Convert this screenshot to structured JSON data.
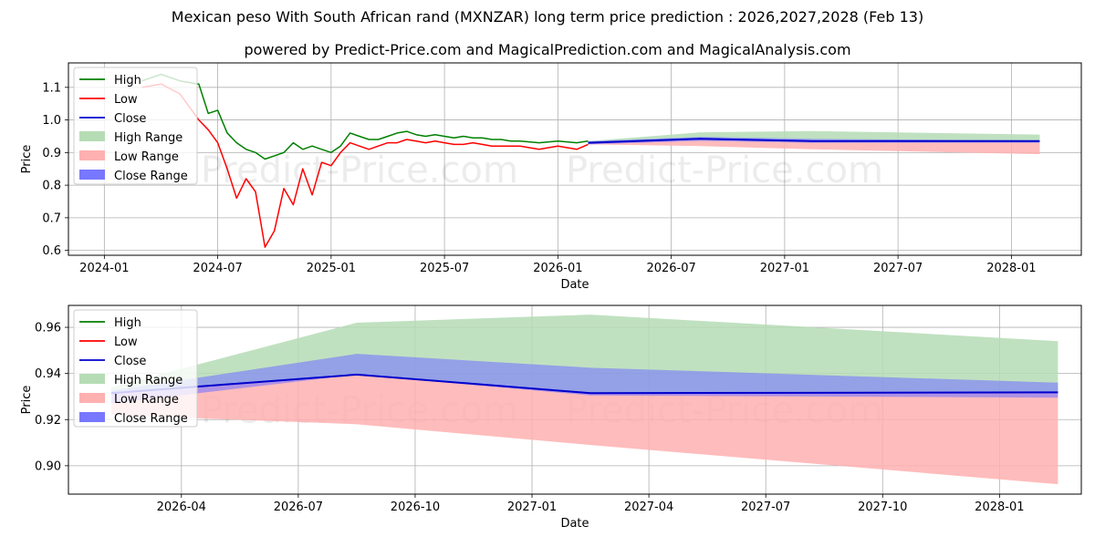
{
  "title": "Mexican peso With South African rand (MXNZAR) long term price prediction : 2026,2027,2028 (Feb 13)",
  "subtitle": "powered by Predict-Price.com and MagicalPrediction.com and MagicalAnalysis.com",
  "watermark": "Predict-Price.com",
  "colors": {
    "high": "#008000",
    "low": "#ff0000",
    "close": "#0000cc",
    "high_range": "#b5dcb5",
    "low_range": "#ffb0b0",
    "close_range": "#7777ff"
  },
  "legend": [
    "High",
    "Low",
    "Close",
    "High Range",
    "Low Range",
    "Close Range"
  ],
  "chart_data": [
    {
      "type": "line",
      "name": "long-term",
      "xlabel": "Date",
      "ylabel": "Price",
      "x_ticks": [
        "2024-01",
        "2024-07",
        "2025-01",
        "2025-07",
        "2026-01",
        "2026-07",
        "2027-01",
        "2027-07",
        "2028-01"
      ],
      "y_ticks": [
        "0.6",
        "0.7",
        "0.8",
        "0.9",
        "1.0",
        "1.1"
      ],
      "ylim": [
        0.585,
        1.175
      ],
      "xlim_months": [
        -1.9,
        51.7
      ],
      "grid": true,
      "legend_position": "top-left",
      "history_months": [
        2.0,
        3.0,
        4.0,
        5.0,
        5.5,
        6.0,
        6.5,
        7.0,
        7.5,
        8.0,
        8.5,
        9.0,
        9.5,
        10.0,
        10.5,
        11.0,
        11.5,
        12.0,
        12.5,
        13.0,
        13.5,
        14.0,
        14.5,
        15.0,
        15.5,
        16.0,
        16.5,
        17.0,
        17.5,
        18.0,
        18.5,
        19.0,
        19.5,
        20.0,
        20.5,
        21.0,
        21.5,
        22.0,
        23.0,
        24.0,
        25.0,
        25.6
      ],
      "history_high": [
        1.12,
        1.14,
        1.12,
        1.11,
        1.02,
        1.03,
        0.96,
        0.93,
        0.91,
        0.9,
        0.88,
        0.89,
        0.9,
        0.93,
        0.91,
        0.92,
        0.91,
        0.9,
        0.92,
        0.96,
        0.95,
        0.94,
        0.94,
        0.95,
        0.96,
        0.965,
        0.955,
        0.95,
        0.955,
        0.95,
        0.945,
        0.95,
        0.945,
        0.945,
        0.94,
        0.94,
        0.935,
        0.935,
        0.93,
        0.935,
        0.93,
        0.935
      ],
      "history_low": [
        1.1,
        1.11,
        1.08,
        1.0,
        0.97,
        0.93,
        0.85,
        0.76,
        0.82,
        0.78,
        0.61,
        0.66,
        0.79,
        0.74,
        0.85,
        0.77,
        0.87,
        0.86,
        0.9,
        0.93,
        0.92,
        0.91,
        0.92,
        0.93,
        0.93,
        0.94,
        0.935,
        0.93,
        0.935,
        0.93,
        0.925,
        0.925,
        0.93,
        0.925,
        0.92,
        0.92,
        0.92,
        0.92,
        0.91,
        0.92,
        0.91,
        0.925
      ],
      "forecast_months": [
        25.6,
        31.5,
        37.5,
        49.5
      ],
      "forecast_close": [
        0.93,
        0.942,
        0.935,
        0.935
      ],
      "high_range": {
        "upper": [
          0.935,
          0.962,
          0.966,
          0.955
        ],
        "lower": [
          0.93,
          0.945,
          0.94,
          0.935
        ]
      },
      "low_range": {
        "upper": [
          0.93,
          0.938,
          0.933,
          0.932
        ],
        "lower": [
          0.925,
          0.92,
          0.91,
          0.895
        ]
      },
      "close_range": {
        "upper": [
          0.935,
          0.948,
          0.942,
          0.937
        ],
        "lower": [
          0.925,
          0.936,
          0.93,
          0.93
        ]
      }
    },
    {
      "type": "line",
      "name": "zoomed-forecast",
      "xlabel": "Date",
      "ylabel": "Price",
      "x_ticks": [
        "2026-04",
        "2026-07",
        "2026-10",
        "2027-01",
        "2027-04",
        "2027-07",
        "2027-10",
        "2028-01"
      ],
      "y_ticks": [
        "0.90",
        "0.92",
        "0.94",
        "0.96"
      ],
      "ylim": [
        0.8877,
        0.9695
      ],
      "xlim_months": [
        24.1,
        50.1
      ],
      "grid": true,
      "legend_position": "top-left",
      "months": [
        25.2,
        31.5,
        37.5,
        49.5
      ],
      "close": [
        0.9315,
        0.9395,
        0.9315,
        0.9318
      ],
      "high_range": {
        "upper": [
          0.934,
          0.962,
          0.9655,
          0.954
        ],
        "lower": [
          0.9315,
          0.9395,
          0.9315,
          0.9318
        ]
      },
      "low_range": {
        "upper": [
          0.9315,
          0.9395,
          0.9315,
          0.9318
        ],
        "lower": [
          0.922,
          0.918,
          0.909,
          0.892
        ]
      },
      "close_range": {
        "upper": [
          0.9325,
          0.9485,
          0.9425,
          0.936
        ],
        "lower": [
          0.927,
          0.9395,
          0.9305,
          0.9295
        ]
      }
    }
  ]
}
